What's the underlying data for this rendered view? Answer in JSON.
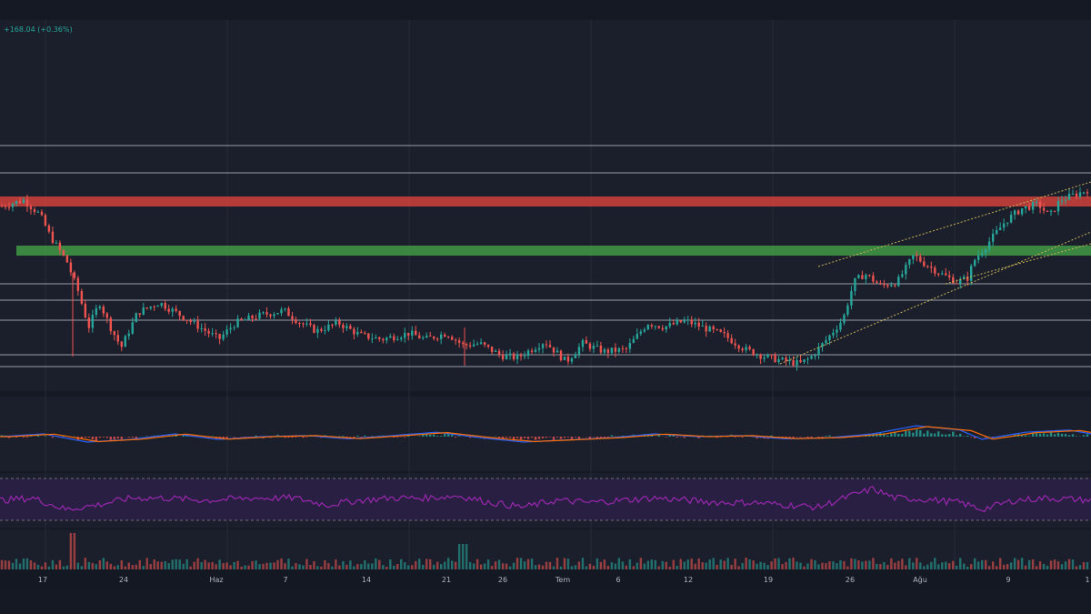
{
  "header": {
    "change_text": "+168.04 (+0.36%)"
  },
  "colors": {
    "background": "#151924",
    "pane_bg": "#1b1f2b",
    "up": "#26a69a",
    "down": "#ef5350",
    "macd_line": "#2962ff",
    "signal_line": "#ff6d00",
    "rsi_line": "#9c27b0",
    "rsi_band": "#2a1f45",
    "resistance_zone": "#e8463c",
    "support_zone": "#43a047",
    "channel": "#c9b458",
    "hline": "#d1d4dc"
  },
  "chart_data": {
    "type": "candlestick",
    "price_path": [
      [
        0,
        0.77
      ],
      [
        0.02,
        0.8
      ],
      [
        0.035,
        0.73
      ],
      [
        0.045,
        0.62
      ],
      [
        0.06,
        0.5
      ],
      [
        0.07,
        0.36
      ],
      [
        0.08,
        0.18
      ],
      [
        0.09,
        0.3
      ],
      [
        0.1,
        0.18
      ],
      [
        0.11,
        0.08
      ],
      [
        0.125,
        0.25
      ],
      [
        0.145,
        0.3
      ],
      [
        0.17,
        0.22
      ],
      [
        0.185,
        0.17
      ],
      [
        0.2,
        0.12
      ],
      [
        0.215,
        0.2
      ],
      [
        0.24,
        0.24
      ],
      [
        0.26,
        0.26
      ],
      [
        0.275,
        0.2
      ],
      [
        0.29,
        0.16
      ],
      [
        0.31,
        0.2
      ],
      [
        0.33,
        0.14
      ],
      [
        0.35,
        0.12
      ],
      [
        0.375,
        0.15
      ],
      [
        0.39,
        0.12
      ],
      [
        0.41,
        0.15
      ],
      [
        0.425,
        0.09
      ],
      [
        0.44,
        0.1
      ],
      [
        0.46,
        0.04
      ],
      [
        0.475,
        0.03
      ],
      [
        0.5,
        0.11
      ],
      [
        0.52,
        0.01
      ],
      [
        0.535,
        0.1
      ],
      [
        0.555,
        0.06
      ],
      [
        0.575,
        0.07
      ],
      [
        0.595,
        0.2
      ],
      [
        0.61,
        0.18
      ],
      [
        0.63,
        0.21
      ],
      [
        0.65,
        0.17
      ],
      [
        0.665,
        0.14
      ],
      [
        0.685,
        0.07
      ],
      [
        0.7,
        0.04
      ],
      [
        0.715,
        0.02
      ],
      [
        0.735,
        0.0
      ],
      [
        0.745,
        0.03
      ],
      [
        0.76,
        0.12
      ],
      [
        0.775,
        0.22
      ],
      [
        0.785,
        0.4
      ],
      [
        0.795,
        0.44
      ],
      [
        0.81,
        0.38
      ],
      [
        0.825,
        0.4
      ],
      [
        0.84,
        0.53
      ],
      [
        0.85,
        0.49
      ],
      [
        0.865,
        0.44
      ],
      [
        0.88,
        0.4
      ],
      [
        0.89,
        0.42
      ],
      [
        0.895,
        0.5
      ],
      [
        0.91,
        0.6
      ],
      [
        0.925,
        0.7
      ],
      [
        0.94,
        0.76
      ],
      [
        0.955,
        0.78
      ],
      [
        0.965,
        0.72
      ],
      [
        0.975,
        0.8
      ],
      [
        0.985,
        0.82
      ],
      [
        1.0,
        0.85
      ]
    ],
    "macd_path": [
      [
        0,
        0.5
      ],
      [
        0.04,
        0.55
      ],
      [
        0.08,
        0.4
      ],
      [
        0.12,
        0.45
      ],
      [
        0.16,
        0.55
      ],
      [
        0.2,
        0.45
      ],
      [
        0.24,
        0.5
      ],
      [
        0.28,
        0.52
      ],
      [
        0.32,
        0.46
      ],
      [
        0.36,
        0.52
      ],
      [
        0.4,
        0.58
      ],
      [
        0.44,
        0.48
      ],
      [
        0.48,
        0.4
      ],
      [
        0.52,
        0.44
      ],
      [
        0.56,
        0.48
      ],
      [
        0.6,
        0.55
      ],
      [
        0.64,
        0.5
      ],
      [
        0.68,
        0.52
      ],
      [
        0.72,
        0.46
      ],
      [
        0.76,
        0.48
      ],
      [
        0.8,
        0.55
      ],
      [
        0.84,
        0.7
      ],
      [
        0.88,
        0.62
      ],
      [
        0.9,
        0.45
      ],
      [
        0.94,
        0.58
      ],
      [
        0.98,
        0.62
      ],
      [
        1.0,
        0.55
      ]
    ],
    "rsi_path": [
      [
        0,
        0.5
      ],
      [
        0.03,
        0.55
      ],
      [
        0.06,
        0.3
      ],
      [
        0.09,
        0.4
      ],
      [
        0.12,
        0.55
      ],
      [
        0.15,
        0.55
      ],
      [
        0.19,
        0.5
      ],
      [
        0.23,
        0.55
      ],
      [
        0.27,
        0.55
      ],
      [
        0.3,
        0.4
      ],
      [
        0.33,
        0.5
      ],
      [
        0.36,
        0.55
      ],
      [
        0.39,
        0.55
      ],
      [
        0.42,
        0.6
      ],
      [
        0.45,
        0.45
      ],
      [
        0.48,
        0.35
      ],
      [
        0.51,
        0.5
      ],
      [
        0.54,
        0.45
      ],
      [
        0.57,
        0.5
      ],
      [
        0.6,
        0.55
      ],
      [
        0.63,
        0.5
      ],
      [
        0.66,
        0.45
      ],
      [
        0.69,
        0.45
      ],
      [
        0.72,
        0.4
      ],
      [
        0.75,
        0.35
      ],
      [
        0.78,
        0.6
      ],
      [
        0.8,
        0.75
      ],
      [
        0.82,
        0.55
      ],
      [
        0.85,
        0.52
      ],
      [
        0.88,
        0.45
      ],
      [
        0.9,
        0.3
      ],
      [
        0.93,
        0.5
      ],
      [
        0.96,
        0.55
      ],
      [
        1.0,
        0.5
      ]
    ],
    "x_ticks": [
      "17",
      "24",
      "Haz",
      "7",
      "14",
      "21",
      "26",
      "Tem",
      "6",
      "12",
      "19",
      "26",
      "Ağu",
      "9",
      "1"
    ],
    "grid": true
  }
}
